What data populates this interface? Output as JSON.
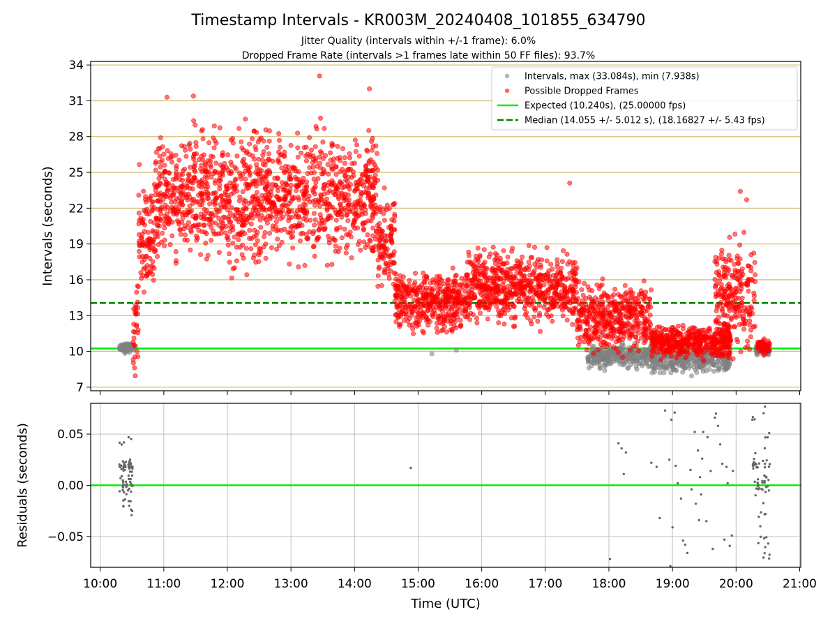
{
  "title": "Timestamp Intervals - KR003M_20240408_101855_634790",
  "subtitle_1": "Jitter Quality (intervals within +/-1 frame): 6.0%",
  "subtitle_2": "Dropped Frame Rate (intervals >1 frames late within 50 FF files): 93.7%",
  "colors": {
    "normal": "#808080",
    "dropped": "#ff0000",
    "expected": "#00ee00",
    "median": "#007f00",
    "top_grid": "#d4c07a",
    "bottom_grid": "#c0c0c0"
  },
  "chart_data": [
    {
      "type": "scatter",
      "panel": "intervals",
      "ylabel": "Intervals (seconds)",
      "ylim": [
        6.7,
        34.3
      ],
      "yticks": [
        "7",
        "10",
        "13",
        "16",
        "19",
        "22",
        "25",
        "28",
        "31",
        "34"
      ],
      "xlim": [
        "09:51",
        "21:01"
      ],
      "grid": "horizontal",
      "legend_position": "top-right",
      "legend": [
        "Intervals, max (33.084s), min (7.938s)",
        "Possible Dropped Frames",
        "Expected (10.240s), (25.00000 fps)",
        "Median (14.055 +/- 5.012 s), (18.16827 +/- 5.43 fps)"
      ],
      "expected_interval": 10.24,
      "median_interval": 14.055,
      "max_interval": 33.084,
      "min_interval": 7.938,
      "regions": [
        {
          "t": [
            "10:18",
            "10:32"
          ],
          "center": 10.3,
          "spread": 0.25,
          "series": "intervals"
        },
        {
          "t": [
            "10:31",
            "10:36"
          ],
          "center": 13.0,
          "spread": 3.0,
          "series": "dropped"
        },
        {
          "t": [
            "10:36",
            "10:52"
          ],
          "center": 20.0,
          "spread": 3.0,
          "series": "dropped"
        },
        {
          "t": [
            "10:52",
            "14:22"
          ],
          "center": 23.0,
          "spread": 3.5,
          "series": "dropped"
        },
        {
          "t": [
            "14:22",
            "14:38"
          ],
          "center": 19.0,
          "spread": 2.5,
          "series": "dropped"
        },
        {
          "t": [
            "14:38",
            "15:45"
          ],
          "center": 14.2,
          "spread": 1.6,
          "series": "dropped"
        },
        {
          "t": [
            "15:45",
            "17:30"
          ],
          "center": 15.4,
          "spread": 2.0,
          "series": "dropped"
        },
        {
          "t": [
            "17:30",
            "18:40"
          ],
          "center": 12.8,
          "spread": 1.8,
          "series": "dropped"
        },
        {
          "t": [
            "17:40",
            "18:40"
          ],
          "center": 9.6,
          "spread": 0.6,
          "series": "intervals"
        },
        {
          "t": [
            "18:40",
            "19:55"
          ],
          "center": 10.8,
          "spread": 0.9,
          "series": "dropped"
        },
        {
          "t": [
            "18:40",
            "19:55"
          ],
          "center": 9.3,
          "spread": 0.7,
          "series": "intervals"
        },
        {
          "t": [
            "19:40",
            "20:18"
          ],
          "center": 14.5,
          "spread": 3.0,
          "series": "dropped"
        },
        {
          "t": [
            "20:20",
            "20:32"
          ],
          "center": 10.4,
          "spread": 0.4,
          "series": "dropped"
        },
        {
          "t": [
            "20:18",
            "20:32"
          ],
          "center": 10.1,
          "spread": 0.3,
          "series": "intervals"
        }
      ],
      "notable_points": [
        {
          "t": "13:27",
          "y": 33.08,
          "series": "dropped"
        },
        {
          "t": "14:14",
          "y": 32.0,
          "series": "dropped"
        },
        {
          "t": "11:03",
          "y": 31.3,
          "series": "dropped"
        },
        {
          "t": "11:28",
          "y": 31.4,
          "series": "dropped"
        },
        {
          "t": "17:23",
          "y": 24.1,
          "series": "dropped"
        },
        {
          "t": "20:04",
          "y": 23.4,
          "series": "dropped"
        },
        {
          "t": "20:10",
          "y": 22.7,
          "series": "dropped"
        },
        {
          "t": "15:13",
          "y": 9.8,
          "series": "intervals"
        },
        {
          "t": "15:36",
          "y": 10.1,
          "series": "intervals"
        },
        {
          "t": "19:18",
          "y": 7.94,
          "series": "intervals"
        },
        {
          "t": "17:56",
          "y": 8.4,
          "series": "intervals"
        }
      ]
    },
    {
      "type": "scatter",
      "panel": "residuals",
      "xlabel": "Time (UTC)",
      "ylabel": "Residuals (seconds)",
      "ylim": [
        -0.08,
        0.08
      ],
      "yticks": [
        "−0.05",
        "0.00",
        "0.05"
      ],
      "xticks": [
        "10:00",
        "11:00",
        "12:00",
        "13:00",
        "14:00",
        "15:00",
        "16:00",
        "17:00",
        "18:00",
        "19:00",
        "20:00",
        "21:00"
      ],
      "xlim": [
        "09:51",
        "21:01"
      ],
      "grid": "both",
      "zero_line": 0.0,
      "clusters": [
        {
          "t": [
            "10:18",
            "10:31"
          ],
          "y": [
            -0.03,
            0.052
          ],
          "n": 80
        },
        {
          "t": [
            "20:15",
            "20:32"
          ],
          "y": [
            -0.075,
            0.08
          ],
          "n": 70
        }
      ],
      "points": [
        [
          "14:53",
          0.017
        ],
        [
          "18:01",
          -0.072
        ],
        [
          "18:09",
          0.041
        ],
        [
          "18:12",
          0.036
        ],
        [
          "18:14",
          0.011
        ],
        [
          "18:16",
          0.032
        ],
        [
          "18:40",
          0.022
        ],
        [
          "18:45",
          0.018
        ],
        [
          "18:48",
          -0.032
        ],
        [
          "18:53",
          0.073
        ],
        [
          "18:57",
          0.025
        ],
        [
          "18:58",
          -0.079
        ],
        [
          "18:59",
          0.064
        ],
        [
          "19:00",
          -0.041
        ],
        [
          "19:02",
          0.071
        ],
        [
          "19:03",
          0.019
        ],
        [
          "19:05",
          0.002
        ],
        [
          "19:08",
          -0.013
        ],
        [
          "19:10",
          -0.054
        ],
        [
          "19:12",
          -0.058
        ],
        [
          "19:14",
          -0.066
        ],
        [
          "19:17",
          0.015
        ],
        [
          "19:18",
          -0.004
        ],
        [
          "19:21",
          0.052
        ],
        [
          "19:22",
          -0.018
        ],
        [
          "19:24",
          0.034
        ],
        [
          "19:25",
          -0.034
        ],
        [
          "19:26",
          0.008
        ],
        [
          "19:27",
          -0.009
        ],
        [
          "19:28",
          0.026
        ],
        [
          "19:29",
          0.052
        ],
        [
          "19:30",
          0.08
        ],
        [
          "19:32",
          -0.035
        ],
        [
          "19:33",
          0.047
        ],
        [
          "19:36",
          0.014
        ],
        [
          "19:38",
          -0.062
        ],
        [
          "19:40",
          0.066
        ],
        [
          "19:41",
          0.07
        ],
        [
          "19:43",
          0.058
        ],
        [
          "19:45",
          0.04
        ],
        [
          "19:47",
          0.021
        ],
        [
          "19:49",
          -0.053
        ],
        [
          "19:51",
          0.018
        ],
        [
          "19:52",
          0.002
        ],
        [
          "19:54",
          -0.059
        ],
        [
          "19:56",
          -0.049
        ],
        [
          "19:57",
          0.014
        ]
      ]
    }
  ]
}
